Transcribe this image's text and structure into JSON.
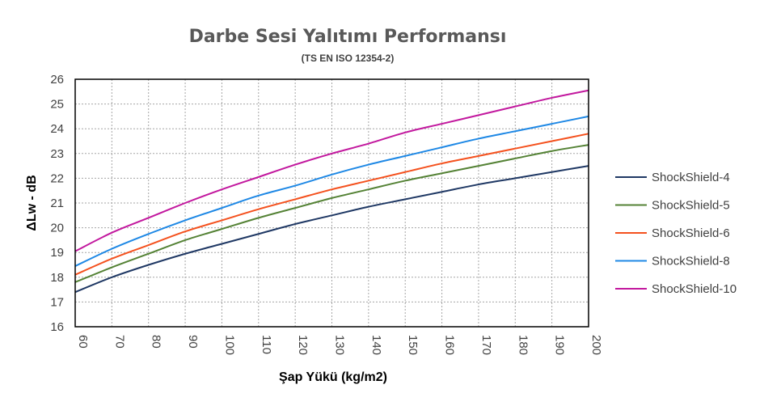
{
  "chart_data": {
    "type": "line",
    "title": "Darbe Sesi Yalıtımı Performansı",
    "subtitle": "(TS EN ISO 12354-2)",
    "xlabel": "Şap Yükü (kg/m2)",
    "ylabel": "ΔLw - dB",
    "x": [
      60,
      70,
      80,
      90,
      100,
      110,
      120,
      130,
      140,
      150,
      160,
      170,
      180,
      190,
      200
    ],
    "xlim": [
      60,
      200
    ],
    "ylim": [
      16,
      26
    ],
    "yticks": [
      16,
      17,
      18,
      19,
      20,
      21,
      22,
      23,
      24,
      25,
      26
    ],
    "xticks": [
      60,
      70,
      80,
      90,
      100,
      110,
      120,
      130,
      140,
      150,
      160,
      170,
      180,
      190,
      200
    ],
    "grid": true,
    "legend_position": "right",
    "series": [
      {
        "name": "ShockShield-4",
        "color": "#1f3864",
        "values": [
          17.4,
          18.0,
          18.5,
          18.95,
          19.35,
          19.75,
          20.15,
          20.5,
          20.85,
          21.15,
          21.45,
          21.75,
          22.0,
          22.25,
          22.5
        ]
      },
      {
        "name": "ShockShield-5",
        "color": "#548235",
        "values": [
          17.8,
          18.4,
          18.95,
          19.5,
          19.95,
          20.4,
          20.8,
          21.2,
          21.55,
          21.9,
          22.2,
          22.5,
          22.8,
          23.1,
          23.35
        ]
      },
      {
        "name": "ShockShield-6",
        "color": "#f4511e",
        "values": [
          18.1,
          18.75,
          19.3,
          19.85,
          20.3,
          20.75,
          21.15,
          21.55,
          21.9,
          22.25,
          22.6,
          22.9,
          23.2,
          23.5,
          23.8
        ]
      },
      {
        "name": "ShockShield-8",
        "color": "#1e88e5",
        "values": [
          18.45,
          19.15,
          19.75,
          20.3,
          20.8,
          21.3,
          21.7,
          22.15,
          22.55,
          22.9,
          23.25,
          23.6,
          23.9,
          24.2,
          24.5
        ]
      },
      {
        "name": "ShockShield-10",
        "color": "#c2189e",
        "values": [
          19.05,
          19.8,
          20.4,
          21.0,
          21.55,
          22.05,
          22.55,
          23.0,
          23.4,
          23.85,
          24.2,
          24.55,
          24.9,
          25.25,
          25.55
        ]
      }
    ]
  }
}
